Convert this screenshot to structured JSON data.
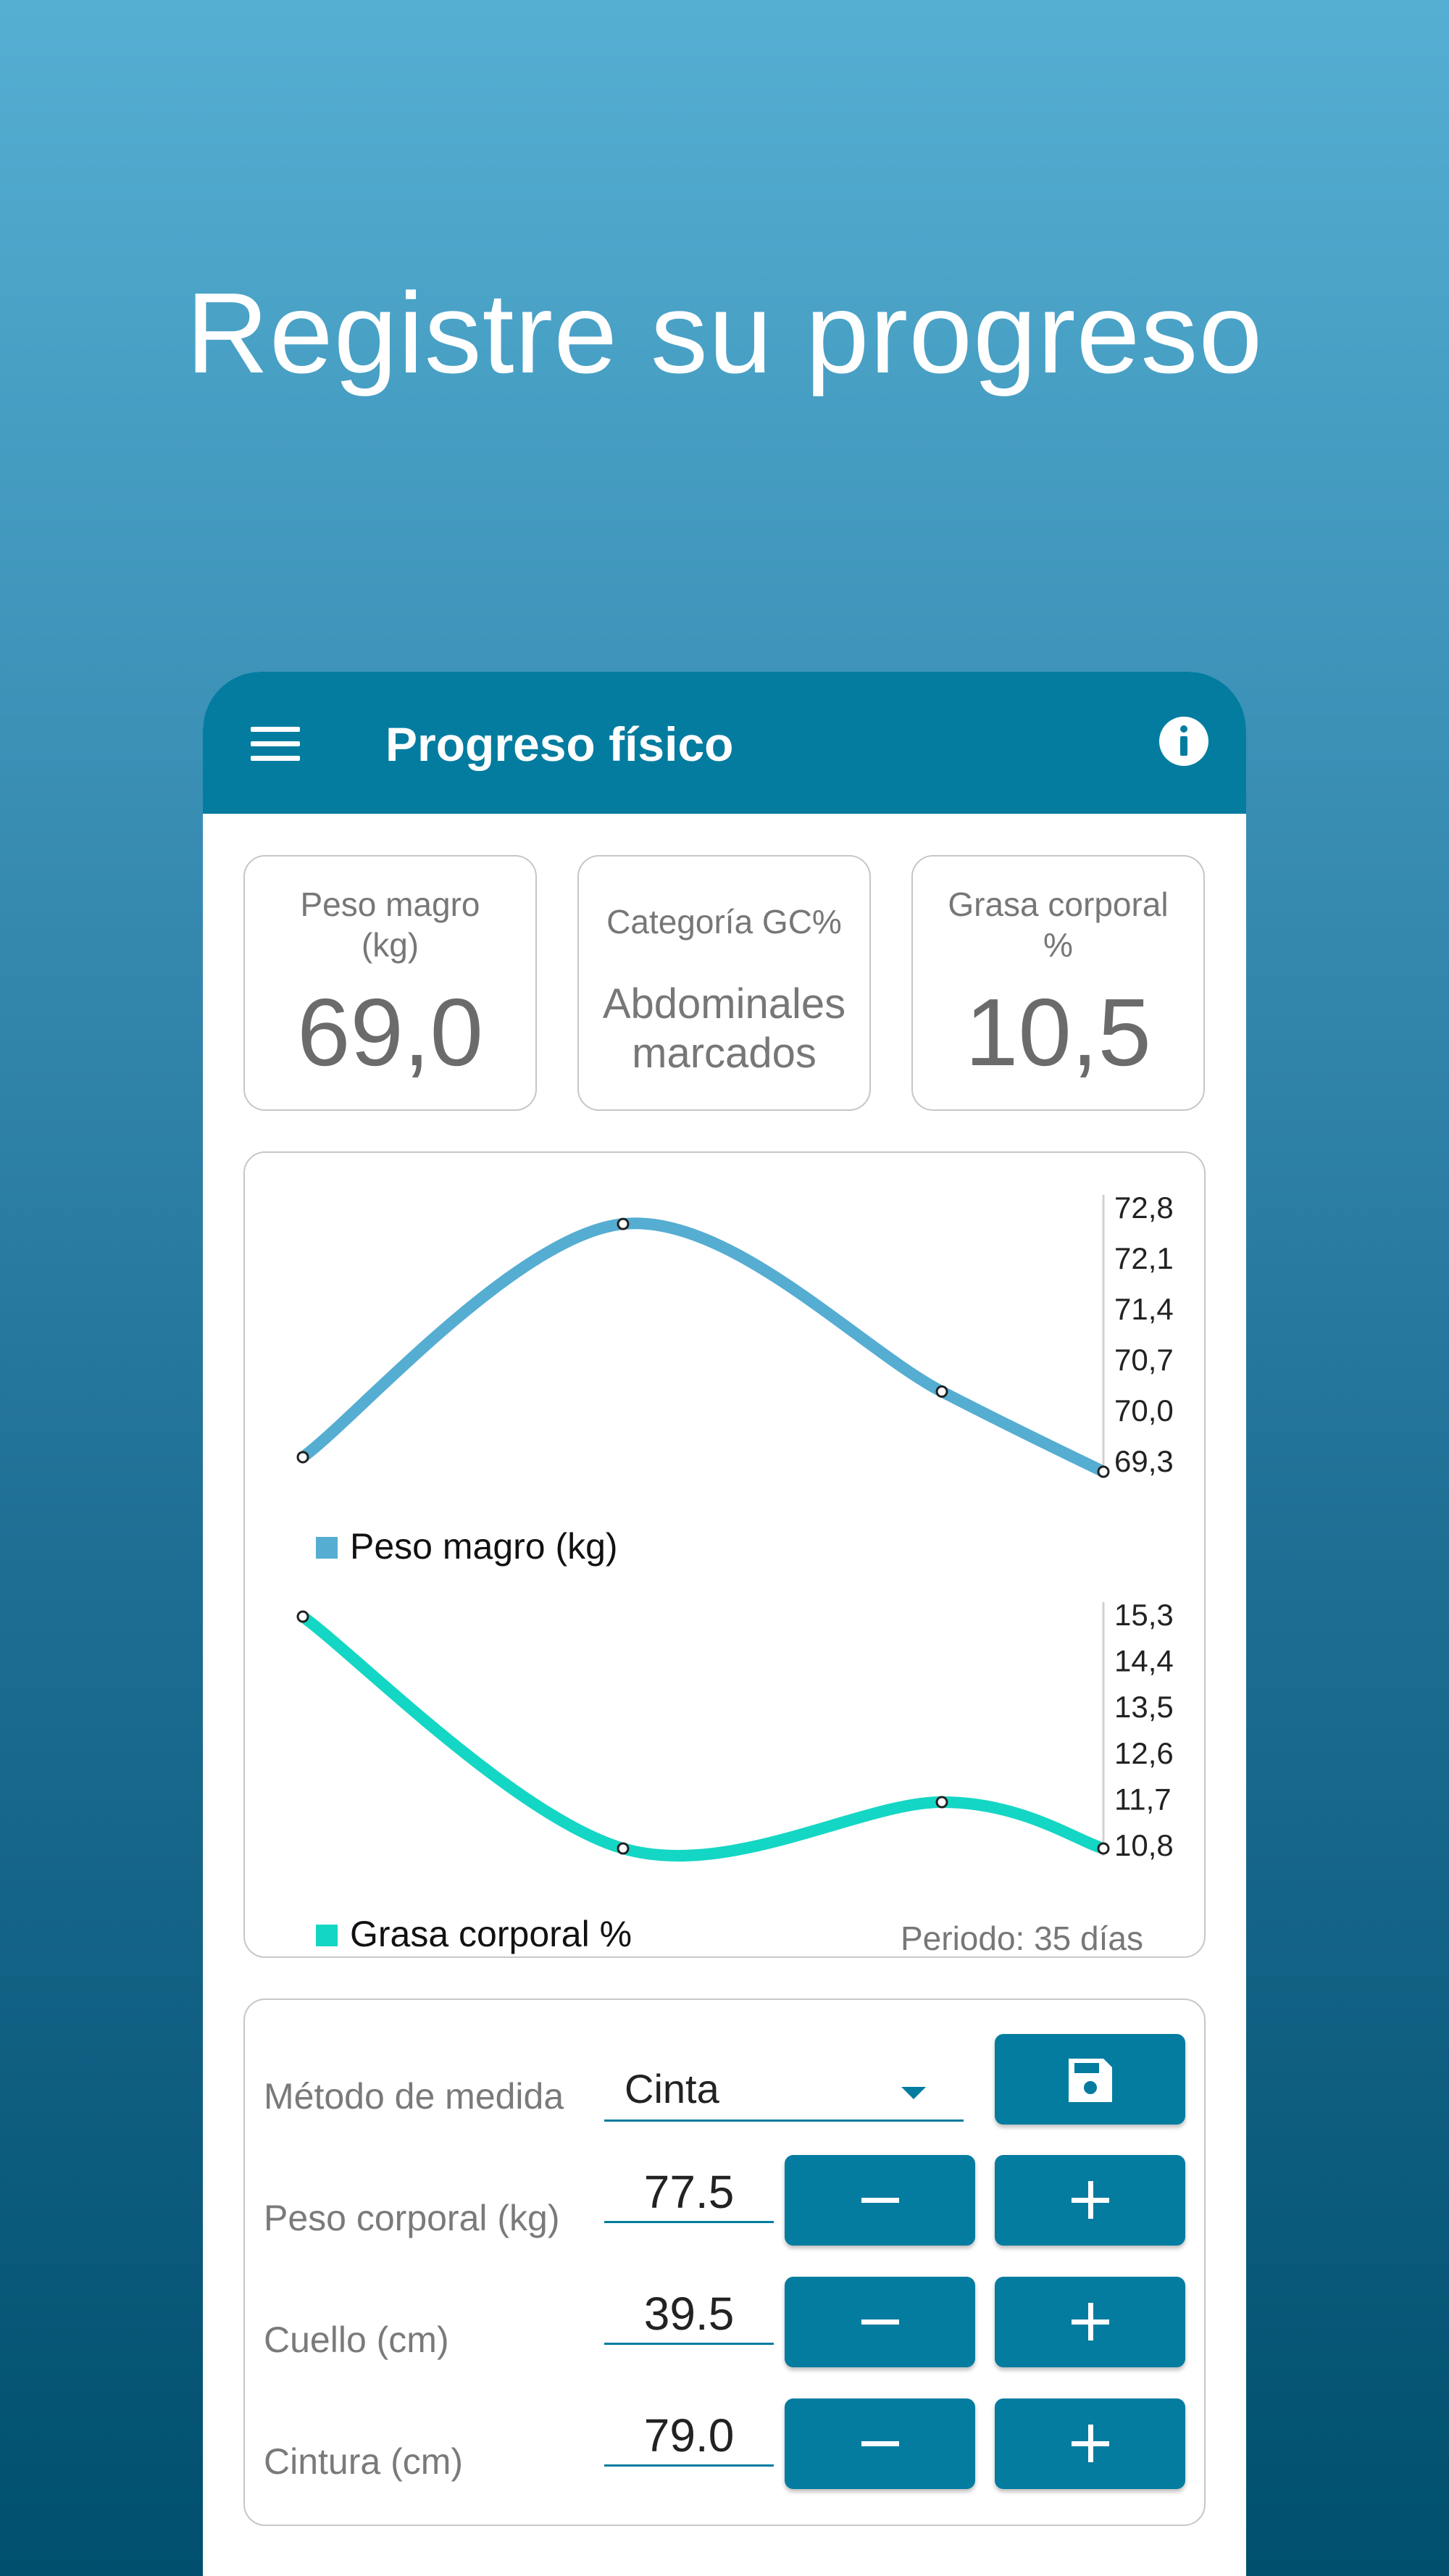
{
  "headline": "Registre su progreso",
  "app": {
    "title": "Progreso físico",
    "menu_icon": "menu-icon",
    "info_icon": "info-icon"
  },
  "stats": {
    "lean_mass": {
      "label_line1": "Peso magro",
      "label_line2": "(kg)",
      "value": "69,0"
    },
    "category": {
      "label": "Categoría GC%",
      "value_line1": "Abdominales",
      "value_line2": "marcados"
    },
    "body_fat": {
      "label_line1": "Grasa corporal",
      "label_line2": "%",
      "value": "10,5"
    }
  },
  "chart_data": [
    {
      "type": "line",
      "series": [
        {
          "name": "Peso magro (kg)",
          "values": [
            69.4,
            72.6,
            70.3,
            69.2
          ]
        }
      ],
      "x": [
        1,
        2,
        3,
        4
      ],
      "yticks": [
        "72,8",
        "72,1",
        "71,4",
        "70,7",
        "70,0",
        "69,3"
      ],
      "ylim": [
        69.3,
        72.8
      ],
      "legend": "bottom-left",
      "color": "#55add2"
    },
    {
      "type": "line",
      "series": [
        {
          "name": "Grasa corporal %",
          "values": [
            15.3,
            10.8,
            11.7,
            10.8
          ]
        }
      ],
      "x": [
        1,
        2,
        3,
        4
      ],
      "yticks": [
        "15,3",
        "14,4",
        "13,5",
        "12,6",
        "11,7",
        "10,8"
      ],
      "ylim": [
        10.8,
        15.3
      ],
      "legend": "bottom-left",
      "color": "#14d6c4"
    }
  ],
  "chart_footer": "Periodo: 35 días",
  "form": {
    "method_label": "Método de medida",
    "method_value": "Cinta",
    "save_icon": "save-icon",
    "rows": [
      {
        "label": "Peso corporal (kg)",
        "value": "77.5"
      },
      {
        "label": "Cuello (cm)",
        "value": "39.5"
      },
      {
        "label": "Cintura (cm)",
        "value": "79.0"
      }
    ]
  },
  "colors": {
    "primary": "#037ca0",
    "lean_line": "#55add2",
    "fat_line": "#14d6c4"
  }
}
